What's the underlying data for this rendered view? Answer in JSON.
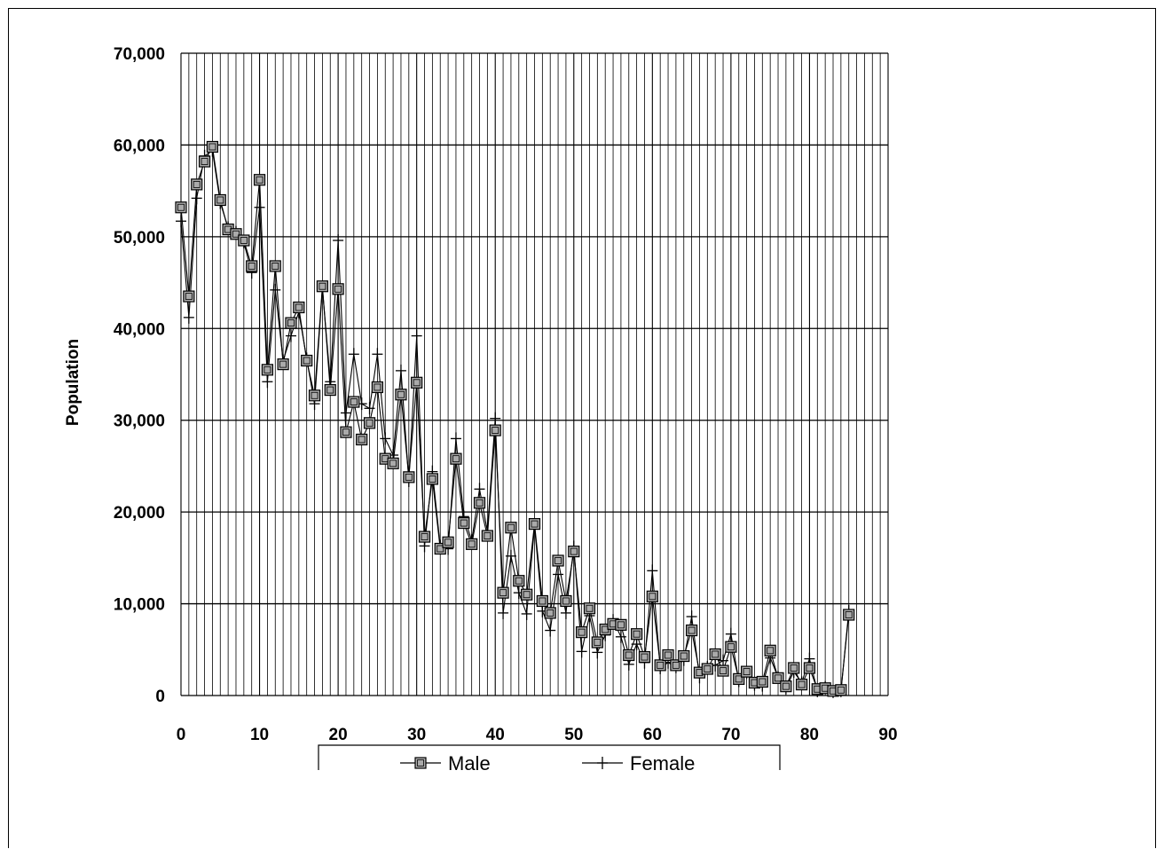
{
  "chart_data": {
    "type": "line",
    "title": "",
    "xlabel": "",
    "ylabel": "Population",
    "xlim": [
      0,
      90
    ],
    "ylim": [
      0,
      70000
    ],
    "x_ticks": [
      0,
      10,
      20,
      30,
      40,
      50,
      60,
      70,
      80,
      90
    ],
    "x_tick_labels": [
      "0",
      "10",
      "20",
      "30",
      "40",
      "50",
      "60",
      "70",
      "80",
      "90"
    ],
    "y_ticks": [
      0,
      10000,
      20000,
      30000,
      40000,
      50000,
      60000,
      70000
    ],
    "y_tick_labels": [
      "0",
      "10,000",
      "20,000",
      "30,000",
      "40,000",
      "50,000",
      "60,000",
      "70,000"
    ],
    "grid": true,
    "legend_position": "bottom",
    "x": [
      0,
      1,
      2,
      3,
      4,
      5,
      6,
      7,
      8,
      9,
      10,
      11,
      12,
      13,
      14,
      15,
      16,
      17,
      18,
      19,
      20,
      21,
      22,
      23,
      24,
      25,
      26,
      27,
      28,
      29,
      30,
      31,
      32,
      33,
      34,
      35,
      36,
      37,
      38,
      39,
      40,
      41,
      42,
      43,
      44,
      45,
      46,
      47,
      48,
      49,
      50,
      51,
      52,
      53,
      54,
      55,
      56,
      57,
      58,
      59,
      60,
      61,
      62,
      63,
      64,
      65,
      66,
      67,
      68,
      69,
      70,
      71,
      72,
      73,
      74,
      75,
      76,
      77,
      78,
      79,
      80,
      81,
      82,
      83,
      84,
      85
    ],
    "series": [
      {
        "name": "Male",
        "marker": "square",
        "values": [
          53200,
          43500,
          55700,
          58200,
          59800,
          54000,
          50800,
          50300,
          49600,
          46800,
          56200,
          35500,
          46800,
          36100,
          40600,
          42300,
          36500,
          32700,
          44600,
          33300,
          44300,
          28700,
          32000,
          27900,
          29700,
          33600,
          25800,
          25300,
          32800,
          23800,
          34100,
          17300,
          23600,
          16000,
          16700,
          25800,
          18800,
          16500,
          21000,
          17400,
          28900,
          11200,
          18300,
          12500,
          11000,
          18700,
          10300,
          9000,
          14700,
          10300,
          15700,
          6900,
          9500,
          5800,
          7200,
          7800,
          7700,
          4400,
          6700,
          4200,
          10800,
          3300,
          4400,
          3300,
          4300,
          7100,
          2500,
          2900,
          4500,
          2700,
          5300,
          1800,
          2600,
          1400,
          1500,
          4900,
          1900,
          1000,
          3000,
          1200,
          3000,
          700,
          800,
          500,
          600,
          8800
        ]
      },
      {
        "name": "Female",
        "marker": "plus",
        "values": [
          51700,
          41200,
          54200,
          58800,
          59400,
          53700,
          51000,
          50500,
          49400,
          46100,
          53200,
          34200,
          44200,
          36500,
          39200,
          41800,
          36700,
          31800,
          44400,
          34200,
          49600,
          30800,
          37200,
          31800,
          31300,
          37200,
          28000,
          26200,
          35400,
          23400,
          39200,
          16300,
          24400,
          16300,
          16000,
          28000,
          19500,
          16900,
          22500,
          17900,
          30200,
          9000,
          15200,
          11200,
          8900,
          18400,
          9200,
          7100,
          13200,
          9000,
          16200,
          4800,
          8700,
          4700,
          6600,
          8200,
          6400,
          3400,
          5600,
          3600,
          13600,
          3000,
          3600,
          3100,
          3900,
          8600,
          2000,
          3100,
          3300,
          3800,
          6700,
          1600,
          2500,
          1200,
          1100,
          4100,
          2000,
          800,
          2600,
          1400,
          4000,
          500,
          900,
          400,
          500,
          9200
        ]
      }
    ]
  }
}
